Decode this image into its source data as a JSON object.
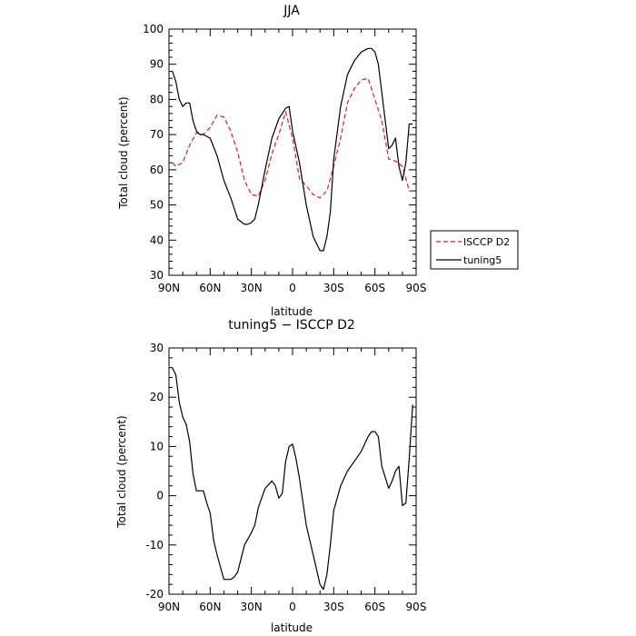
{
  "chart_data": [
    {
      "type": "line",
      "title": "JJA",
      "xlabel": "latitude",
      "ylabel": "Total cloud (percent)",
      "x_tick_values": [
        90,
        60,
        30,
        0,
        -30,
        -60,
        -90
      ],
      "x_tick_labels": [
        "90N",
        "60N",
        "30N",
        "0",
        "30S",
        "60S",
        "90S"
      ],
      "xlim": [
        90,
        -90
      ],
      "ylim": [
        30,
        100
      ],
      "y_ticks": [
        30,
        40,
        50,
        60,
        70,
        80,
        90,
        100
      ],
      "grid": false,
      "legend_position": "right",
      "series": [
        {
          "name": "ISCCP D2",
          "color": "#e41a1c",
          "dash": "dashed",
          "x": [
            87.5,
            85,
            80,
            75,
            70,
            65,
            60,
            55,
            50,
            45,
            40,
            35,
            30,
            25,
            20,
            15,
            10,
            5,
            0,
            -5,
            -10,
            -15,
            -20,
            -25,
            -30,
            -35,
            -40,
            -45,
            -50,
            -55,
            -60,
            -65,
            -70,
            -75,
            -80,
            -85,
            -87.5
          ],
          "values": [
            62,
            61,
            62,
            67,
            70.5,
            70,
            72,
            75.5,
            75,
            71,
            65,
            57,
            53,
            52.5,
            57,
            64.5,
            70,
            76.5,
            69,
            57.5,
            55.5,
            53,
            52,
            54,
            61,
            69,
            79,
            83,
            85.5,
            86,
            80,
            74,
            63,
            62.5,
            61,
            54,
            54
          ]
        },
        {
          "name": "tuning5",
          "color": "#000000",
          "dash": "solid",
          "x": [
            87.5,
            85,
            82.5,
            80,
            77.5,
            75,
            72.5,
            70,
            67.5,
            65,
            60,
            55,
            50,
            45,
            40,
            35,
            32.5,
            30,
            27.5,
            25,
            20,
            15,
            10,
            5,
            2.5,
            0,
            -5,
            -10,
            -15,
            -20,
            -22.5,
            -25,
            -27.5,
            -30,
            -35,
            -40,
            -45,
            -50,
            -55,
            -57.5,
            -60,
            -62.5,
            -65,
            -70,
            -72.5,
            -75,
            -77.5,
            -80,
            -82.5,
            -85,
            -87.5
          ],
          "values": [
            88,
            85,
            80,
            78,
            79,
            79,
            74,
            71,
            70,
            70,
            69,
            64,
            57,
            52,
            46,
            44.5,
            44.5,
            45,
            46,
            50,
            60,
            69,
            74.5,
            77.5,
            78,
            71,
            62,
            50,
            41,
            37,
            37,
            41,
            48,
            63,
            78,
            87,
            91,
            93.5,
            94.5,
            94.5,
            93.5,
            90,
            82,
            66,
            67,
            69,
            61,
            57,
            62,
            73,
            73
          ]
        }
      ]
    },
    {
      "type": "line",
      "title": "tuning5 − ISCCP D2",
      "xlabel": "latitude",
      "ylabel": "Total cloud (percent)",
      "x_tick_values": [
        90,
        60,
        30,
        0,
        -30,
        -60,
        -90
      ],
      "x_tick_labels": [
        "90N",
        "60N",
        "30N",
        "0",
        "30S",
        "60S",
        "90S"
      ],
      "xlim": [
        90,
        -90
      ],
      "ylim": [
        -20,
        30
      ],
      "y_ticks": [
        -20,
        -10,
        0,
        10,
        20,
        30
      ],
      "grid": false,
      "series": [
        {
          "color": "#000000",
          "dash": "solid",
          "x": [
            87.5,
            85,
            82.5,
            80,
            77.5,
            75,
            72.5,
            70,
            67.5,
            65,
            62.5,
            60,
            57.5,
            55,
            50,
            45,
            42.5,
            40,
            35,
            30,
            27.5,
            25,
            20,
            15,
            12.5,
            10,
            7.5,
            5,
            2.5,
            0,
            -2.5,
            -5,
            -10,
            -15,
            -20,
            -22.5,
            -25,
            -27.5,
            -30,
            -35,
            -40,
            -45,
            -50,
            -55,
            -57.5,
            -60,
            -62.5,
            -65,
            -70,
            -72.5,
            -75,
            -77.5,
            -80,
            -82.5,
            -85,
            -87.5
          ],
          "values": [
            26,
            24.5,
            19,
            16,
            14.5,
            11,
            4.5,
            1,
            1,
            1,
            -1.5,
            -3.5,
            -9,
            -12,
            -17,
            -17,
            -16.5,
            -15.5,
            -10,
            -7.5,
            -6,
            -2.5,
            1.5,
            3,
            2,
            -0.5,
            0.5,
            7,
            10,
            10.5,
            7.5,
            3.5,
            -6,
            -12,
            -18,
            -19,
            -16,
            -10,
            -3,
            2,
            5,
            7,
            9,
            12,
            13,
            13,
            12,
            6,
            1.5,
            3,
            5,
            6,
            -2,
            -1.5,
            7.5,
            18.5
          ]
        }
      ]
    }
  ]
}
